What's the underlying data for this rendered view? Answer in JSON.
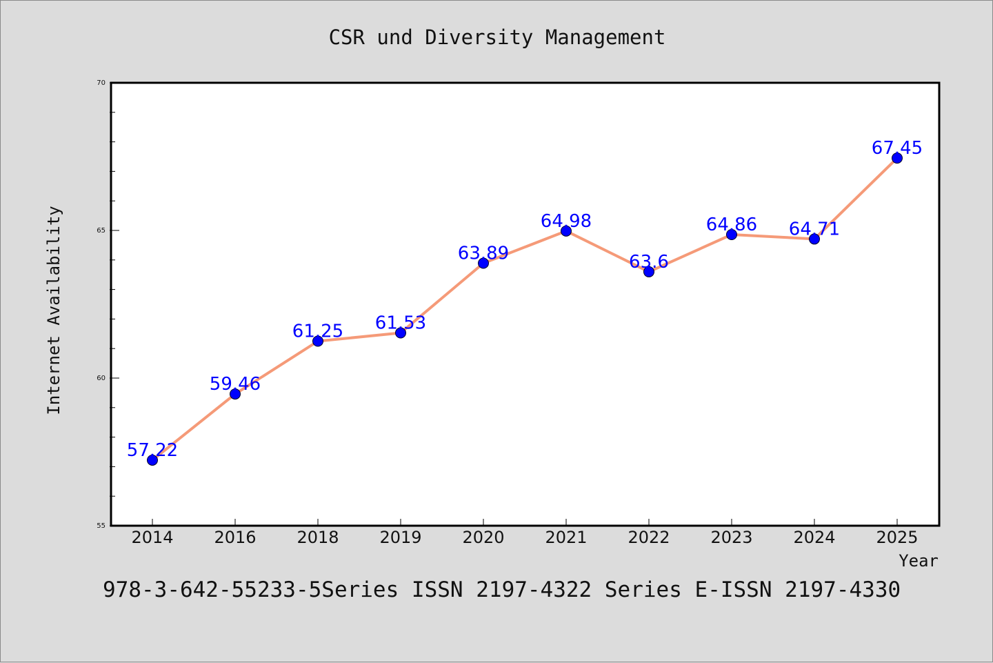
{
  "chart_data": {
    "type": "line",
    "title": "CSR und Diversity Management",
    "xlabel": "Year",
    "ylabel": "Internet Availability",
    "categories": [
      "2014",
      "2016",
      "2018",
      "2019",
      "2020",
      "2021",
      "2022",
      "2023",
      "2024",
      "2025"
    ],
    "series": [
      {
        "values": [
          57.22,
          59.46,
          61.25,
          61.53,
          63.89,
          64.98,
          63.6,
          64.86,
          64.71,
          67.45
        ],
        "labels": [
          "57.22",
          "59.46",
          "61.25",
          "61.53",
          "63.89",
          "64.98",
          "63.6",
          "64.86",
          "64.71",
          "67.45"
        ],
        "line_color": "#f59a78",
        "marker_color": "#0000ff"
      }
    ],
    "ylim": [
      55,
      70
    ],
    "yticks": [
      "55",
      "60",
      "65",
      "70"
    ],
    "grid": false,
    "legend": "none"
  },
  "footer": {
    "text": "978-3-642-55233-5Series ISSN 2197-4322 Series E-ISSN 2197-4330"
  }
}
